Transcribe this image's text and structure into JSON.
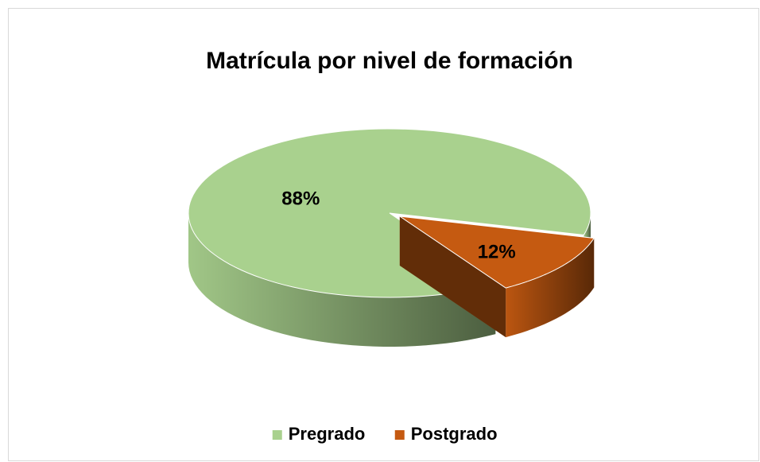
{
  "chart_data": {
    "type": "pie",
    "title": "Matrícula por nivel de formación",
    "categories": [
      "Pregrado",
      "Postgrado"
    ],
    "values": [
      88,
      12
    ],
    "value_labels": [
      "88%",
      "12%"
    ],
    "colors": [
      "#a9d18e",
      "#c55a11"
    ],
    "legend": "bottom"
  }
}
